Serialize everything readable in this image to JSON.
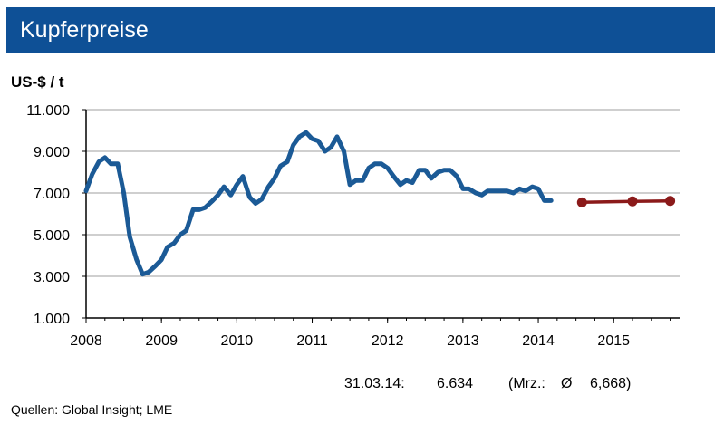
{
  "header": {
    "title": "Kupferpreise"
  },
  "colors": {
    "header_bg": "#0e5096",
    "history_line": "#1b5a96",
    "forecast_line": "#8b1a1a",
    "grid": "#bfbfbf"
  },
  "chart_data": {
    "type": "line",
    "title": "Kupferpreise",
    "ylabel": "US-$ / t",
    "xlabel": "",
    "ylim": [
      1000,
      11000
    ],
    "xlim": [
      2008,
      2015.875
    ],
    "y_ticks": [
      "1.000",
      "3.000",
      "5.000",
      "7.000",
      "9.000",
      "11.000"
    ],
    "y_tick_values": [
      1000,
      3000,
      5000,
      7000,
      9000,
      11000
    ],
    "x_ticks": [
      "2008",
      "2009",
      "2010",
      "2011",
      "2012",
      "2013",
      "2014",
      "2015"
    ],
    "x_tick_values": [
      2008,
      2009,
      2010,
      2011,
      2012,
      2013,
      2014,
      2015
    ],
    "grid": "horizontal",
    "series": [
      {
        "name": "",
        "style": "line",
        "color": "#1b5a96",
        "x": [
          2008.0,
          2008.08,
          2008.17,
          2008.25,
          2008.33,
          2008.42,
          2008.5,
          2008.58,
          2008.67,
          2008.75,
          2008.83,
          2008.92,
          2009.0,
          2009.08,
          2009.17,
          2009.25,
          2009.33,
          2009.42,
          2009.5,
          2009.58,
          2009.67,
          2009.75,
          2009.83,
          2009.92,
          2010.0,
          2010.08,
          2010.17,
          2010.25,
          2010.33,
          2010.42,
          2010.5,
          2010.58,
          2010.67,
          2010.75,
          2010.83,
          2010.92,
          2011.0,
          2011.08,
          2011.17,
          2011.25,
          2011.33,
          2011.42,
          2011.5,
          2011.58,
          2011.67,
          2011.75,
          2011.83,
          2011.92,
          2012.0,
          2012.08,
          2012.17,
          2012.25,
          2012.33,
          2012.42,
          2012.5,
          2012.58,
          2012.67,
          2012.75,
          2012.83,
          2012.92,
          2013.0,
          2013.08,
          2013.17,
          2013.25,
          2013.33,
          2013.42,
          2013.5,
          2013.58,
          2013.67,
          2013.75,
          2013.83,
          2013.92,
          2014.0,
          2014.08,
          2014.17
        ],
        "values": [
          7100,
          7900,
          8500,
          8700,
          8400,
          8400,
          7000,
          4900,
          3800,
          3100,
          3200,
          3500,
          3800,
          4400,
          4600,
          5000,
          5200,
          6200,
          6200,
          6300,
          6600,
          6900,
          7300,
          6900,
          7400,
          7800,
          6800,
          6500,
          6700,
          7300,
          7700,
          8300,
          8500,
          9300,
          9700,
          9900,
          9600,
          9500,
          9000,
          9200,
          9700,
          9000,
          7400,
          7600,
          7600,
          8200,
          8400,
          8400,
          8200,
          7800,
          7400,
          7600,
          7500,
          8100,
          8100,
          7700,
          8000,
          8100,
          8100,
          7800,
          7200,
          7200,
          7000,
          6900,
          7100,
          7100,
          7100,
          7100,
          7000,
          7200,
          7100,
          7300,
          7200,
          6634,
          6634
        ]
      },
      {
        "name": "",
        "style": "line-markers",
        "color": "#8b1a1a",
        "x": [
          2014.58,
          2015.25,
          2015.75
        ],
        "values": [
          6550,
          6600,
          6620
        ]
      }
    ],
    "annotation": {
      "date": "31.03.14:",
      "value": "6.634",
      "avg_prefix": "(Mrz.:",
      "avg_symbol": "Ø",
      "avg_value": "6,668)"
    }
  },
  "footer": {
    "source": "Quellen:  Global Insight; LME"
  }
}
